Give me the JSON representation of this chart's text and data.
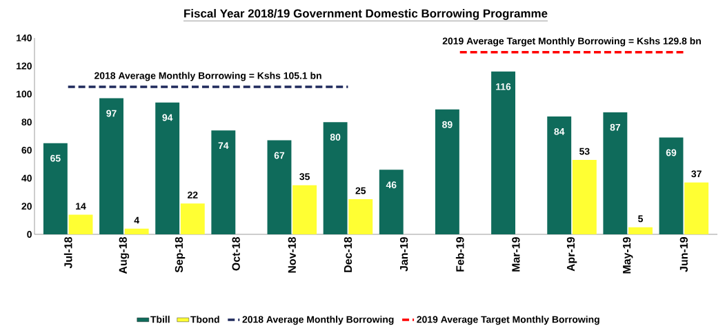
{
  "chart_data": {
    "type": "bar",
    "title": "Fiscal Year 2018/19 Government Domestic Borrowing Programme",
    "categories": [
      "Jul-18",
      "Aug-18",
      "Sep-18",
      "Oct-18",
      "Nov-18",
      "Dec-18",
      "Jan-19",
      "Feb-19",
      "Mar-19",
      "Apr-19",
      "May-19",
      "Jun-19"
    ],
    "series": [
      {
        "name": "Tbill",
        "color": "#0f6b5b",
        "values": [
          65,
          97,
          94,
          74,
          67,
          80,
          46,
          89,
          116,
          84,
          87,
          69
        ],
        "value_labels": [
          "65",
          "97",
          "94",
          "74",
          "67",
          "80",
          "46",
          "89",
          "116",
          "84",
          "87",
          "69"
        ]
      },
      {
        "name": "Tbond",
        "color": "#ffff33",
        "values": [
          14,
          4,
          22,
          null,
          35,
          25,
          null,
          null,
          null,
          53,
          5,
          37
        ],
        "value_labels": [
          "14",
          "4",
          "22",
          null,
          "35",
          "25",
          null,
          null,
          null,
          "53",
          "5",
          "37"
        ]
      },
      {
        "name": "2018 Average Monthly Borrowing",
        "type": "line",
        "line_style": "dashed",
        "color": "#1f2a5c",
        "values": [
          105.1,
          105.1,
          105.1,
          105.1,
          105.1,
          105.1,
          null,
          null,
          null,
          null,
          null,
          null
        ]
      },
      {
        "name": "2019 Average Target Monthly Borrowing",
        "type": "line",
        "line_style": "dashed",
        "color": "#ff0000",
        "values": [
          null,
          null,
          null,
          null,
          null,
          null,
          null,
          129.8,
          129.8,
          129.8,
          129.8,
          129.8
        ]
      }
    ],
    "annotations": [
      "2018 Average  Monthly Borrowing = Kshs 105.1 bn",
      "2019 Average  Target  Monthly Borrowing = Kshs 129.8 bn"
    ],
    "ylim": [
      0,
      140
    ],
    "yticks": [
      0,
      20,
      40,
      60,
      80,
      100,
      120,
      140
    ],
    "legend": "bottom",
    "grid": false
  }
}
